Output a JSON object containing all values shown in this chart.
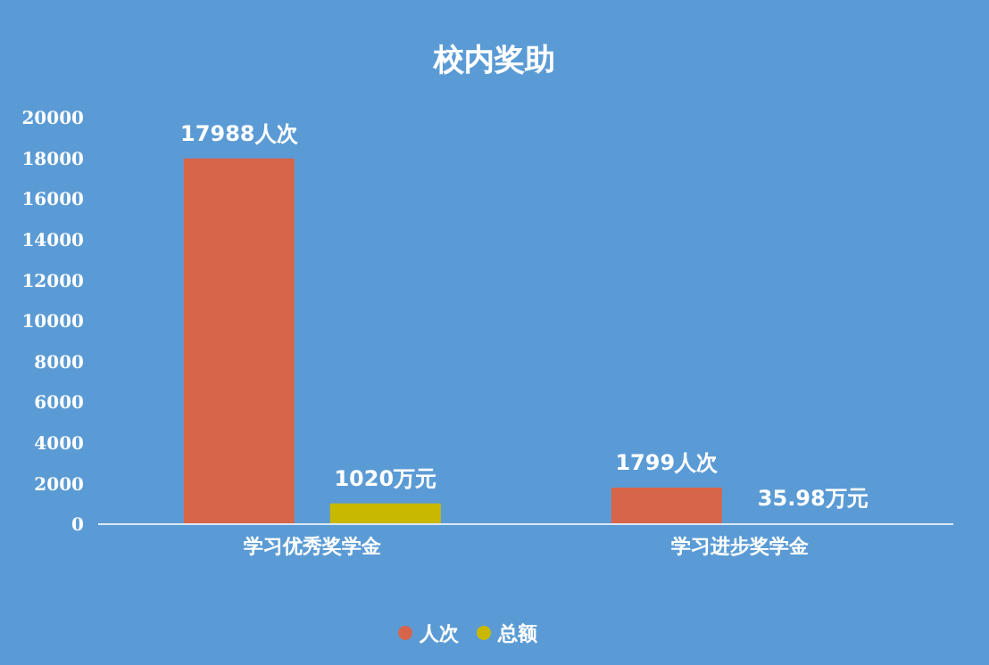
{
  "chart_data": {
    "type": "bar",
    "title": "校内奖助",
    "categories": [
      "学习优秀奖学金",
      "学习进步奖学金"
    ],
    "series": [
      {
        "name": "人次",
        "color": "#d6654a",
        "values": [
          17988,
          1799
        ],
        "value_labels": [
          "17988人次",
          "1799人次"
        ]
      },
      {
        "name": "总额",
        "color": "#c9b800",
        "values": [
          1020,
          35.98
        ],
        "value_labels": [
          "1020万元",
          "35.98万元"
        ]
      }
    ],
    "ylim": [
      0,
      20000
    ],
    "yticks": [
      0,
      2000,
      4000,
      6000,
      8000,
      10000,
      12000,
      14000,
      16000,
      18000,
      20000
    ],
    "grid": false,
    "legend": "bottom",
    "marker": "circle"
  }
}
